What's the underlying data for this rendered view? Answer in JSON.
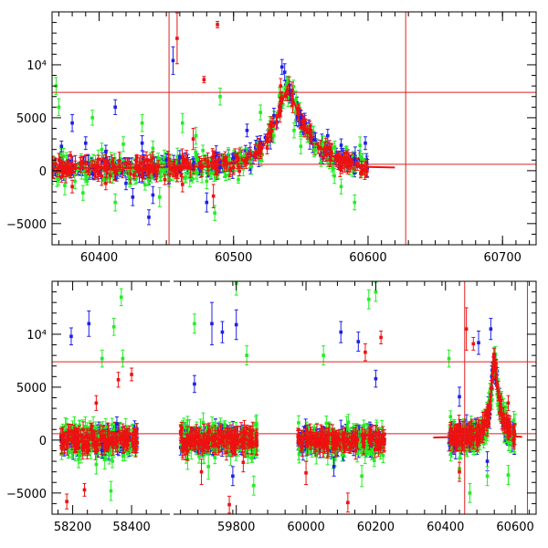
{
  "colors": {
    "blue": "#1f1fe6",
    "green": "#22ee22",
    "red": "#ee1111",
    "refline": "#dd2222",
    "axis": "#000000"
  },
  "chart_data": [
    {
      "type": "scatter",
      "title": "",
      "xlabel": "",
      "ylabel": "",
      "xlim": [
        60365,
        60725
      ],
      "ylim": [
        -7000,
        15000
      ],
      "x_ticks": [
        {
          "value": 60400,
          "label": "60400"
        },
        {
          "value": 60500,
          "label": "60500"
        },
        {
          "value": 60600,
          "label": "60600"
        },
        {
          "value": 60700,
          "label": "60700"
        }
      ],
      "y_ticks": [
        {
          "value": -5000,
          "label": "−5000"
        },
        {
          "value": 0,
          "label": "0"
        },
        {
          "value": 5000,
          "label": "5000"
        },
        {
          "value": 10000,
          "label": "10⁴"
        }
      ],
      "hlines": [
        7400,
        600
      ],
      "vlines": [
        60452,
        60628
      ],
      "model_curve": {
        "x": [
          60365,
          60440,
          60480,
          60500,
          60510,
          60520,
          60527,
          60532,
          60536,
          60540,
          60544,
          60550,
          60560,
          60570,
          60580,
          60590,
          60600,
          60620
        ],
        "y": [
          250,
          300,
          400,
          700,
          1100,
          2000,
          3200,
          4800,
          6500,
          7800,
          6800,
          4700,
          2700,
          1600,
          1000,
          600,
          350,
          300
        ]
      },
      "series": [
        {
          "color": "blue",
          "points": [
            [
              60372,
              2300,
              500
            ],
            [
              60380,
              4500,
              800
            ],
            [
              60390,
              2600,
              600
            ],
            [
              60395,
              -300,
              500
            ],
            [
              60405,
              1800,
              600
            ],
            [
              60412,
              6000,
              700
            ],
            [
              60420,
              -1200,
              600
            ],
            [
              60425,
              -2500,
              800
            ],
            [
              60432,
              2600,
              700
            ],
            [
              60437,
              -4400,
              700
            ],
            [
              60440,
              -2300,
              800
            ],
            [
              60450,
              1000,
              600
            ],
            [
              60455,
              10400,
              1300
            ],
            [
              60460,
              1300,
              600
            ],
            [
              60470,
              600,
              500
            ],
            [
              60480,
              -3000,
              900
            ],
            [
              60490,
              300,
              500
            ],
            [
              60500,
              1200,
              500
            ],
            [
              60510,
              3800,
              600
            ],
            [
              60520,
              2700,
              600
            ],
            [
              60530,
              5200,
              700
            ],
            [
              60536,
              9800,
              700
            ],
            [
              60538,
              9300,
              800
            ],
            [
              60542,
              7400,
              700
            ],
            [
              60550,
              5000,
              700
            ],
            [
              60560,
              2900,
              700
            ],
            [
              60570,
              3300,
              600
            ],
            [
              60580,
              2400,
              600
            ],
            [
              60590,
              1100,
              600
            ],
            [
              60598,
              2600,
              600
            ]
          ]
        },
        {
          "color": "green",
          "points": [
            [
              60368,
              8000,
              800
            ],
            [
              60370,
              6000,
              800
            ],
            [
              60382,
              -1000,
              700
            ],
            [
              60388,
              -2100,
              700
            ],
            [
              60395,
              5000,
              700
            ],
            [
              60402,
              2000,
              600
            ],
            [
              60412,
              -3000,
              800
            ],
            [
              60418,
              2500,
              700
            ],
            [
              60422,
              -600,
              700
            ],
            [
              60432,
              4500,
              800
            ],
            [
              60440,
              2100,
              700
            ],
            [
              60445,
              -2500,
              900
            ],
            [
              60452,
              -800,
              700
            ],
            [
              60462,
              4500,
              900
            ],
            [
              60472,
              3300,
              800
            ],
            [
              60480,
              -1000,
              700
            ],
            [
              60486,
              -4000,
              700
            ],
            [
              60490,
              7000,
              800
            ],
            [
              60505,
              1500,
              700
            ],
            [
              60520,
              5500,
              700
            ],
            [
              60530,
              3300,
              700
            ],
            [
              60545,
              3800,
              700
            ],
            [
              60550,
              2300,
              700
            ],
            [
              60560,
              2000,
              700
            ],
            [
              60575,
              -500,
              700
            ],
            [
              60580,
              -1500,
              700
            ],
            [
              60590,
              -3000,
              700
            ]
          ]
        },
        {
          "color": "red",
          "points": [
            [
              60372,
              -600,
              500
            ],
            [
              60380,
              -1500,
              600
            ],
            [
              60395,
              500,
              500
            ],
            [
              60405,
              -1200,
              600
            ],
            [
              60420,
              700,
              500
            ],
            [
              60432,
              -400,
              600
            ],
            [
              60440,
              1200,
              600
            ],
            [
              60452,
              1000,
              500
            ],
            [
              60458,
              12500,
              2400
            ],
            [
              60462,
              -1300,
              700
            ],
            [
              60470,
              3000,
              1000
            ],
            [
              60478,
              8600,
              300
            ],
            [
              60485,
              -2400,
              1100
            ],
            [
              60488,
              13800,
              300
            ],
            [
              60500,
              300,
              500
            ],
            [
              60510,
              1200,
              500
            ],
            [
              60520,
              2200,
              500
            ],
            [
              60528,
              4500,
              600
            ],
            [
              60535,
              8000,
              700
            ],
            [
              60540,
              7300,
              700
            ],
            [
              60548,
              5500,
              700
            ],
            [
              60555,
              3600,
              600
            ],
            [
              60570,
              2100,
              600
            ],
            [
              60585,
              1200,
              500
            ],
            [
              60595,
              400,
              500
            ]
          ]
        }
      ]
    },
    {
      "type": "scatter",
      "title": "",
      "xlabel": "",
      "ylabel": "",
      "ylim": [
        -7000,
        15000
      ],
      "x_ticks": [
        {
          "value": 58200,
          "label": "58200"
        },
        {
          "value": 58400,
          "label": "58400"
        },
        {
          "value": 59800,
          "label": "59800"
        },
        {
          "value": 60000,
          "label": "60000"
        },
        {
          "value": 60200,
          "label": "60200"
        },
        {
          "value": 60400,
          "label": "60400"
        },
        {
          "value": 60600,
          "label": "60600"
        }
      ],
      "segments": [
        {
          "xlim": [
            58130,
            58530
          ],
          "break_after": true
        },
        {
          "xlim": [
            59620,
            60660
          ],
          "break_after": false
        }
      ],
      "y_ticks": [
        {
          "value": -5000,
          "label": "−5000"
        },
        {
          "value": 0,
          "label": "0"
        },
        {
          "value": 5000,
          "label": "5000"
        },
        {
          "value": 10000,
          "label": "10⁴"
        }
      ],
      "hlines": [
        7400,
        600
      ],
      "vlines": [
        60455,
        60635
      ],
      "series": [
        {
          "color": "blue",
          "points": [
            [
              58195,
              9800,
              800
            ],
            [
              58255,
              11000,
              1200
            ],
            [
              58300,
              -1000,
              700
            ],
            [
              58350,
              1500,
              700
            ],
            [
              59730,
              11000,
              2000
            ],
            [
              59760,
              10200,
              1000
            ],
            [
              59800,
              10900,
              1400
            ],
            [
              59790,
              -3400,
              900
            ],
            [
              59680,
              5300,
              800
            ],
            [
              60100,
              10200,
              1000
            ],
            [
              60150,
              9300,
              900
            ],
            [
              60200,
              5800,
              800
            ],
            [
              60080,
              -2500,
              900
            ],
            [
              60440,
              4100,
              900
            ],
            [
              60495,
              9200,
              1100
            ],
            [
              60530,
              10500,
              1000
            ],
            [
              60520,
              -2000,
              900
            ]
          ]
        },
        {
          "color": "green",
          "points": [
            [
              58220,
              -1800,
              800
            ],
            [
              58280,
              -2300,
              900
            ],
            [
              58300,
              7700,
              800
            ],
            [
              58340,
              10700,
              800
            ],
            [
              58365,
              13500,
              800
            ],
            [
              58370,
              7700,
              800
            ],
            [
              58330,
              -4800,
              900
            ],
            [
              59680,
              11000,
              900
            ],
            [
              59800,
              14800,
              1100
            ],
            [
              59830,
              8000,
              900
            ],
            [
              59850,
              -4300,
              900
            ],
            [
              59720,
              -2500,
              1200
            ],
            [
              60050,
              8000,
              900
            ],
            [
              60180,
              13300,
              900
            ],
            [
              60200,
              14000,
              900
            ],
            [
              60160,
              -3400,
              1000
            ],
            [
              60410,
              7700,
              800
            ],
            [
              60440,
              -2700,
              900
            ],
            [
              60470,
              -5000,
              900
            ],
            [
              60520,
              -3400,
              900
            ],
            [
              60580,
              -3300,
              900
            ]
          ]
        },
        {
          "color": "red",
          "points": [
            [
              58180,
              -5800,
              700
            ],
            [
              58240,
              -4700,
              600
            ],
            [
              58280,
              3500,
              700
            ],
            [
              58355,
              5700,
              700
            ],
            [
              58400,
              6200,
              600
            ],
            [
              59700,
              -3000,
              1200
            ],
            [
              59780,
              -6100,
              800
            ],
            [
              59820,
              -2100,
              900
            ],
            [
              60000,
              -3100,
              1100
            ],
            [
              60120,
              -5900,
              900
            ],
            [
              60170,
              8300,
              800
            ],
            [
              60215,
              9700,
              600
            ],
            [
              60440,
              -3000,
              900
            ],
            [
              60460,
              10500,
              2000
            ],
            [
              60480,
              9100,
              600
            ],
            [
              60540,
              8000,
              700
            ],
            [
              60580,
              3500,
              700
            ]
          ]
        }
      ],
      "dense_clusters": [
        {
          "xr": [
            58160,
            58420
          ]
        },
        {
          "xr": [
            59640,
            59860
          ]
        },
        {
          "xr": [
            59975,
            60225
          ]
        },
        {
          "xr": [
            60410,
            60600
          ]
        }
      ]
    }
  ]
}
